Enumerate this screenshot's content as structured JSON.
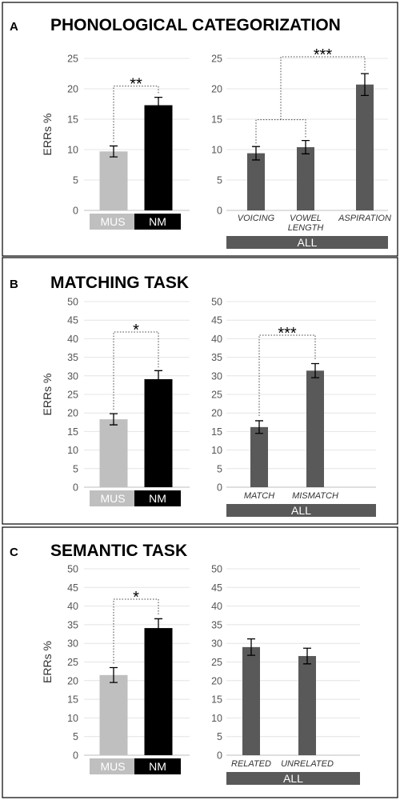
{
  "y_axis_label": "ERRs %",
  "colors": {
    "mus": "#bfbfbf",
    "nm": "#000000",
    "all": "#595959"
  },
  "chart_data": [
    {
      "panel": "A",
      "title": "PHONOLOGICAL CATEGORIZATION",
      "ylim": [
        0,
        25
      ],
      "yticks": [
        0,
        5,
        10,
        15,
        20,
        25
      ],
      "left": {
        "type": "bar",
        "categories": [
          "MUS",
          "NM"
        ],
        "values": [
          9.7,
          17.3
        ],
        "errors": [
          0.9,
          1.3
        ],
        "bracket": {
          "from": 0,
          "to": 1,
          "stars": "**"
        }
      },
      "right": {
        "type": "bar",
        "categories": [
          "VOICING",
          "VOWEL LENGTH",
          "ASPIRATION"
        ],
        "category_lines": [
          [
            "VOICING"
          ],
          [
            "VOWEL",
            "LENGTH"
          ],
          [
            "ASPIRATION"
          ]
        ],
        "values": [
          9.4,
          10.4,
          20.7
        ],
        "errors": [
          1.1,
          1.1,
          1.8
        ],
        "group_label": "ALL",
        "bracket": {
          "from_pair": [
            0,
            1
          ],
          "to": 2,
          "stars": "***"
        }
      }
    },
    {
      "panel": "B",
      "title": "MATCHING TASK",
      "ylim": [
        0,
        50
      ],
      "yticks": [
        0,
        5,
        10,
        15,
        20,
        25,
        30,
        35,
        40,
        45,
        50
      ],
      "left": {
        "type": "bar",
        "categories": [
          "MUS",
          "NM"
        ],
        "values": [
          18.3,
          29.1
        ],
        "errors": [
          1.5,
          2.3
        ],
        "bracket": {
          "from": 0,
          "to": 1,
          "stars": "*"
        }
      },
      "right": {
        "type": "bar",
        "categories": [
          "MATCH",
          "MISMATCH"
        ],
        "category_lines": [
          [
            "MATCH"
          ],
          [
            "MISMATCH"
          ]
        ],
        "values": [
          16.2,
          31.4
        ],
        "errors": [
          1.7,
          1.9
        ],
        "group_label": "ALL",
        "bracket": {
          "from": 0,
          "to": 1,
          "stars": "***"
        }
      }
    },
    {
      "panel": "C",
      "title": "SEMANTIC TASK",
      "ylim": [
        0,
        50
      ],
      "yticks": [
        0,
        5,
        10,
        15,
        20,
        25,
        30,
        35,
        40,
        45,
        50
      ],
      "left": {
        "type": "bar",
        "categories": [
          "MUS",
          "NM"
        ],
        "values": [
          21.5,
          34.1
        ],
        "errors": [
          2.0,
          2.5
        ],
        "bracket": {
          "from": 0,
          "to": 1,
          "stars": "*"
        }
      },
      "right": {
        "type": "bar",
        "categories": [
          "RELATED",
          "UNRELATED"
        ],
        "category_lines": [
          [
            "RELATED"
          ],
          [
            "UNRELATED"
          ]
        ],
        "values": [
          29.0,
          26.6
        ],
        "errors": [
          2.2,
          2.1
        ],
        "group_label": "ALL",
        "bracket": null
      }
    }
  ]
}
